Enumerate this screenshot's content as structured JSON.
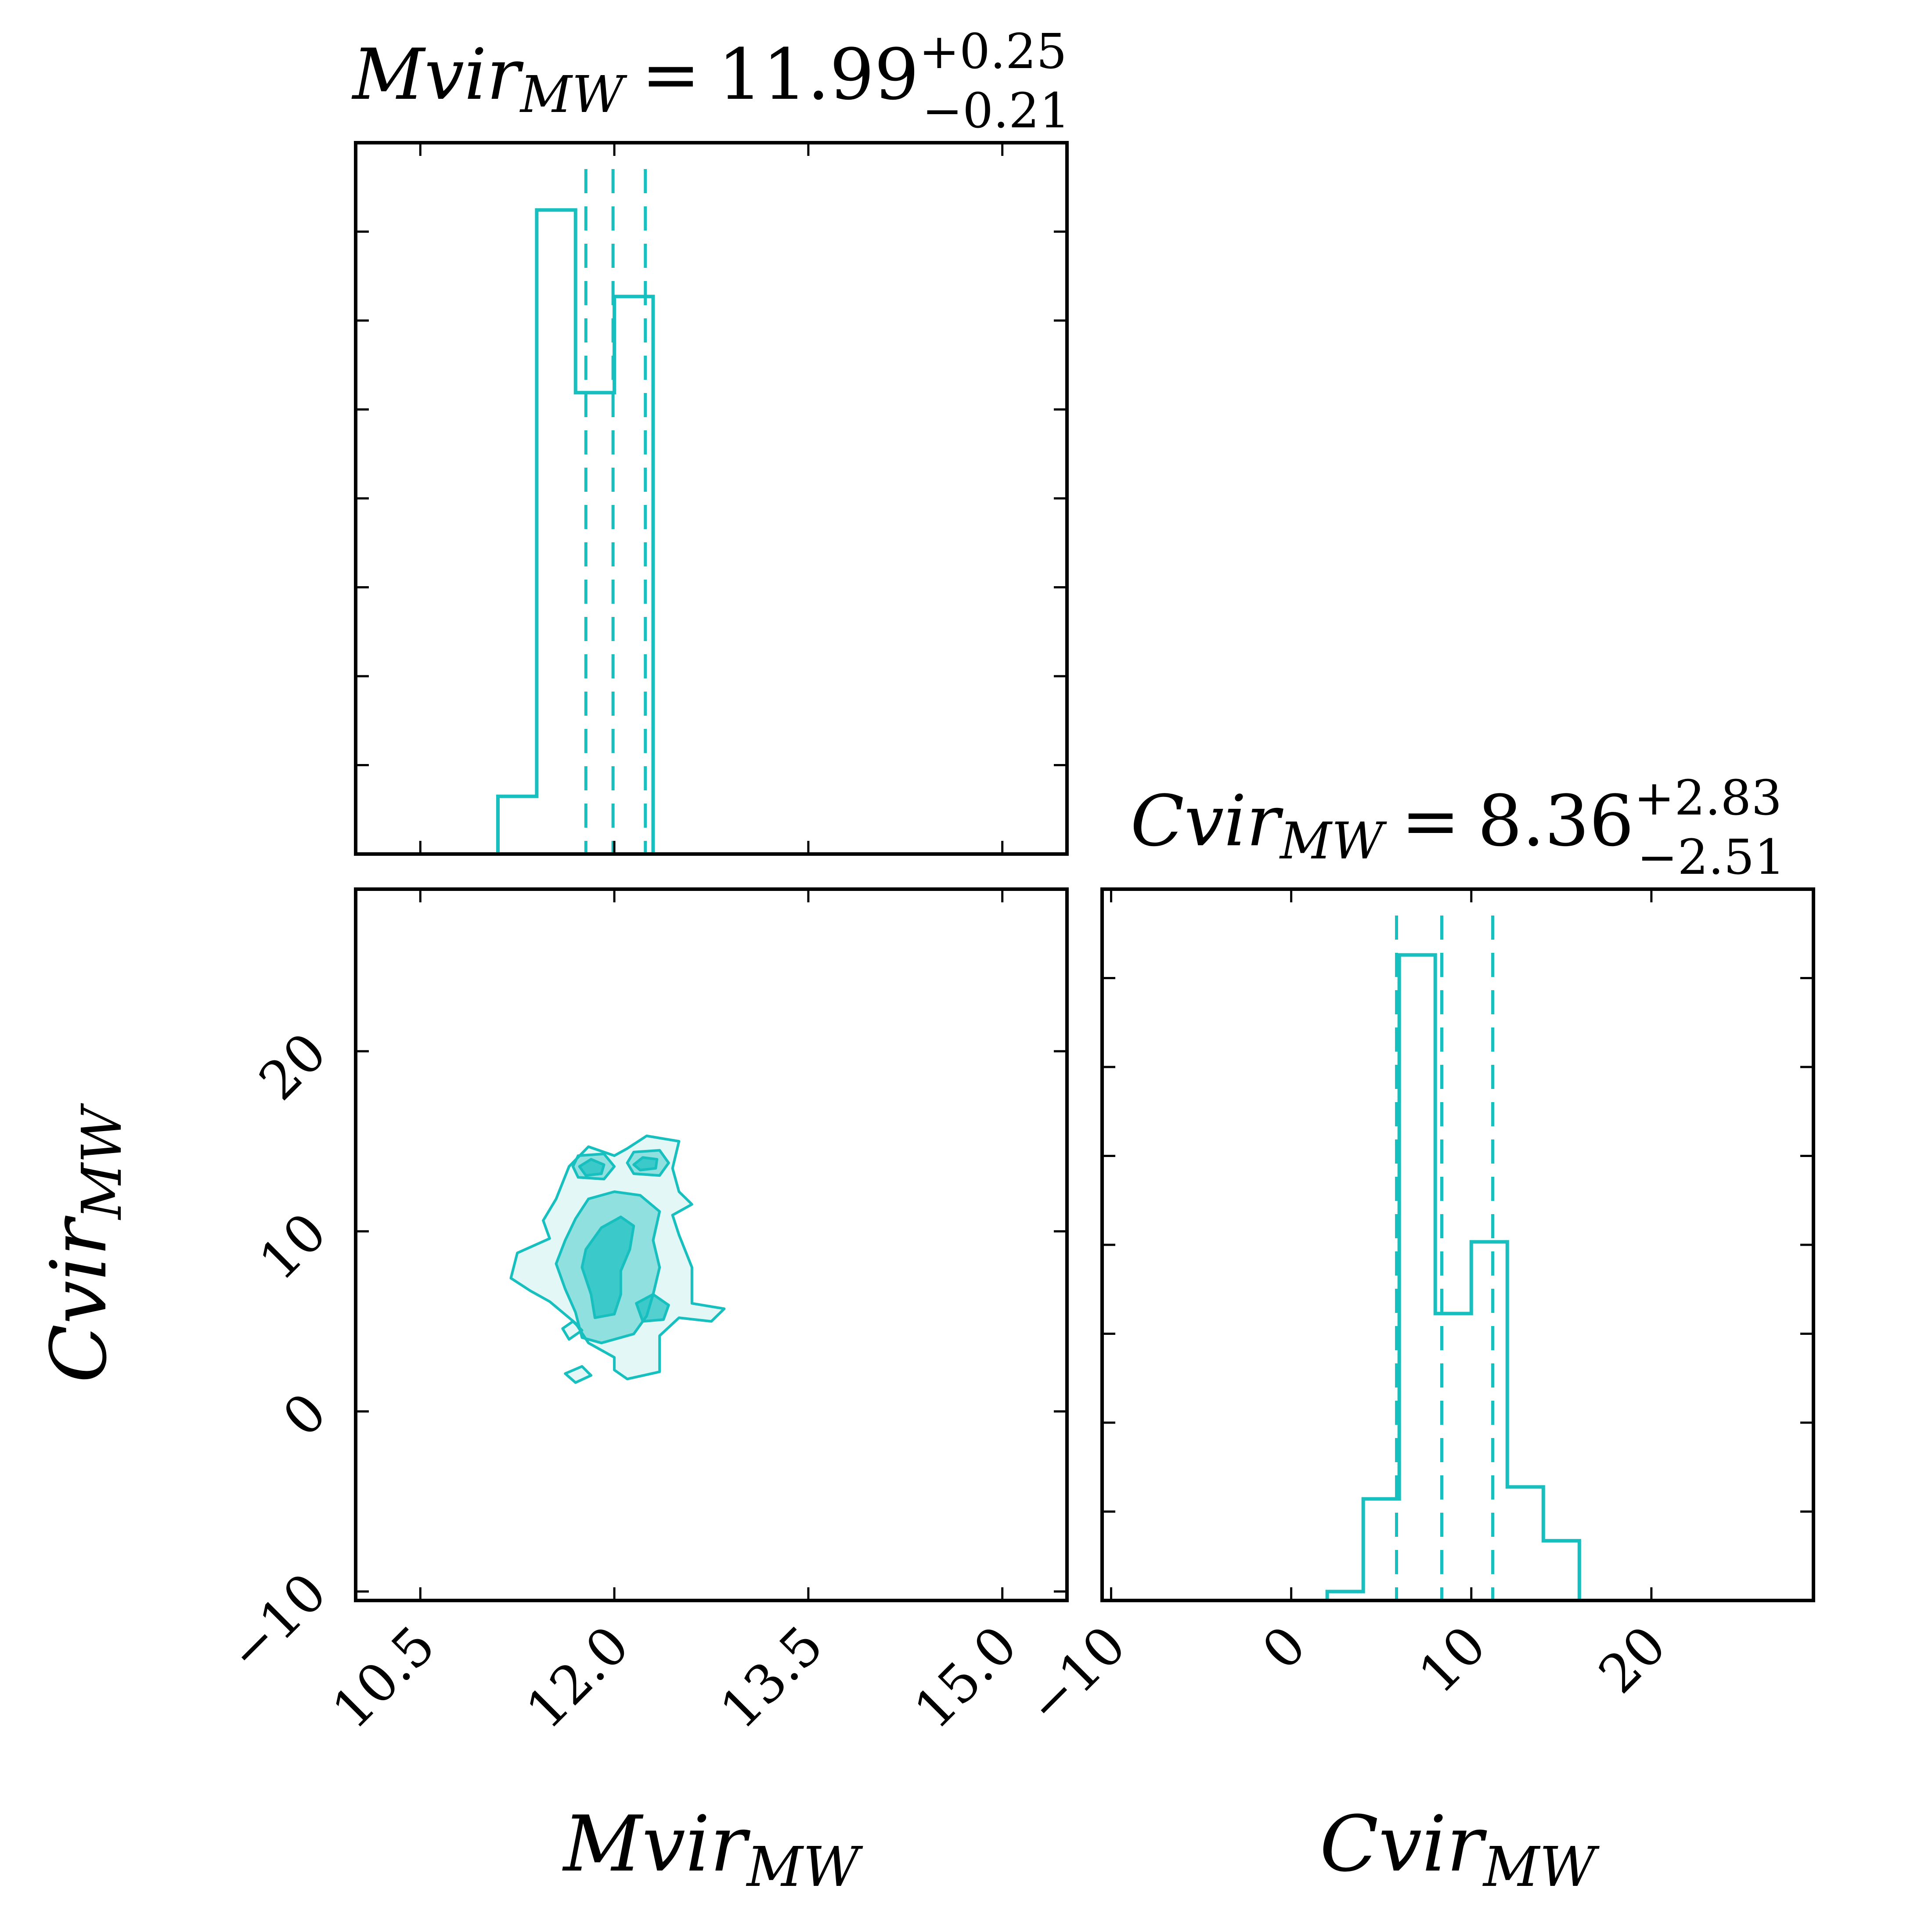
{
  "figure": {
    "type": "corner-plot",
    "accent_color": "#17bfbf"
  },
  "chart_data": [
    {
      "type": "bar",
      "panel": "hist-mvir",
      "title": {
        "param": "Mvir",
        "sub": "MW",
        "eq": "=",
        "median": "11.99",
        "plus": "+0.25",
        "minus": "−0.21"
      },
      "bin_edges": [
        10.8,
        11.1,
        11.4,
        11.7,
        12.0,
        12.3,
        12.6,
        12.9
      ],
      "values": [
        0.0,
        0.06,
        0.67,
        0.48,
        0.58,
        0.0,
        0.0
      ],
      "quantiles": [
        11.78,
        11.99,
        12.24
      ],
      "xlim": [
        10.0,
        15.5
      ],
      "ylim": [
        0,
        0.74
      ],
      "xlabel": "",
      "ylabel": ""
    },
    {
      "type": "heatmap",
      "panel": "joint-mvir-cvir",
      "xlabel": {
        "param": "Mvir",
        "sub": "MW"
      },
      "ylabel": {
        "param": "Cvir",
        "sub": "MW"
      },
      "xlim": [
        10.0,
        15.5
      ],
      "ylim": [
        -10.5,
        29
      ],
      "xticks": [
        "10.5",
        "12.0",
        "13.5",
        "15.0"
      ],
      "yticks": [
        "−10",
        "0",
        "10",
        "20"
      ],
      "xtick_values": [
        10.5,
        12.0,
        13.5,
        15.0
      ],
      "ytick_values": [
        -10,
        0,
        10,
        20
      ],
      "contour_levels": [
        {
          "level": 1,
          "polygons": [
            [
              [
                11.2,
                7.4
              ],
              [
                11.25,
                8.8
              ],
              [
                11.5,
                9.6
              ],
              [
                11.45,
                10.6
              ],
              [
                11.55,
                11.8
              ],
              [
                11.65,
                13.6
              ],
              [
                11.8,
                14.7
              ],
              [
                12.0,
                14.2
              ],
              [
                12.1,
                14.6
              ],
              [
                12.25,
                15.3
              ],
              [
                12.5,
                15.0
              ],
              [
                12.45,
                13.5
              ],
              [
                12.5,
                12.2
              ],
              [
                12.6,
                11.5
              ],
              [
                12.45,
                10.9
              ],
              [
                12.5,
                9.8
              ],
              [
                12.6,
                8.0
              ],
              [
                12.6,
                6.0
              ],
              [
                12.85,
                5.7
              ],
              [
                12.75,
                5.0
              ],
              [
                12.5,
                5.2
              ],
              [
                12.35,
                4.2
              ],
              [
                12.35,
                2.2
              ],
              [
                12.1,
                1.8
              ],
              [
                12.0,
                2.3
              ],
              [
                12.0,
                3.0
              ],
              [
                11.8,
                3.8
              ],
              [
                11.7,
                4.9
              ],
              [
                11.5,
                6.1
              ],
              [
                11.35,
                6.7
              ],
              [
                11.2,
                7.4
              ]
            ],
            [
              [
                11.65,
                4.0
              ],
              [
                11.75,
                4.5
              ],
              [
                11.68,
                5.0
              ],
              [
                11.6,
                4.6
              ],
              [
                11.65,
                4.0
              ]
            ],
            [
              [
                11.7,
                1.6
              ],
              [
                11.82,
                2.0
              ],
              [
                11.75,
                2.5
              ],
              [
                11.62,
                2.1
              ],
              [
                11.7,
                1.6
              ]
            ]
          ]
        },
        {
          "level": 2,
          "polygons": [
            [
              [
                11.55,
                8.2
              ],
              [
                11.62,
                9.5
              ],
              [
                11.7,
                10.7
              ],
              [
                11.8,
                11.8
              ],
              [
                12.0,
                12.2
              ],
              [
                12.2,
                12.0
              ],
              [
                12.35,
                11.1
              ],
              [
                12.3,
                9.5
              ],
              [
                12.35,
                8.0
              ],
              [
                12.3,
                6.5
              ],
              [
                12.25,
                5.3
              ],
              [
                12.15,
                4.3
              ],
              [
                11.9,
                3.8
              ],
              [
                11.75,
                4.1
              ],
              [
                11.7,
                5.5
              ],
              [
                11.62,
                6.8
              ],
              [
                11.55,
                8.2
              ]
            ],
            [
              [
                11.72,
                13.0
              ],
              [
                11.92,
                12.9
              ],
              [
                12.0,
                13.6
              ],
              [
                11.92,
                14.3
              ],
              [
                11.72,
                14.2
              ],
              [
                11.68,
                13.6
              ],
              [
                11.72,
                13.0
              ]
            ],
            [
              [
                12.15,
                13.2
              ],
              [
                12.35,
                13.1
              ],
              [
                12.42,
                13.8
              ],
              [
                12.35,
                14.5
              ],
              [
                12.15,
                14.4
              ],
              [
                12.1,
                13.8
              ],
              [
                12.15,
                13.2
              ]
            ]
          ]
        },
        {
          "level": 3,
          "polygons": [
            [
              [
                11.75,
                8.0
              ],
              [
                11.78,
                9.0
              ],
              [
                11.9,
                10.2
              ],
              [
                12.05,
                10.8
              ],
              [
                12.15,
                10.3
              ],
              [
                12.12,
                9.0
              ],
              [
                12.05,
                7.8
              ],
              [
                12.05,
                6.5
              ],
              [
                12.0,
                5.4
              ],
              [
                11.85,
                5.2
              ],
              [
                11.82,
                6.5
              ],
              [
                11.75,
                8.0
              ]
            ],
            [
              [
                12.22,
                5.0
              ],
              [
                12.38,
                5.1
              ],
              [
                12.42,
                5.9
              ],
              [
                12.3,
                6.5
              ],
              [
                12.17,
                6.0
              ],
              [
                12.22,
                5.0
              ]
            ],
            [
              [
                11.78,
                13.1
              ],
              [
                11.9,
                13.2
              ],
              [
                11.92,
                13.7
              ],
              [
                11.82,
                14.0
              ],
              [
                11.73,
                13.6
              ],
              [
                11.78,
                13.1
              ]
            ],
            [
              [
                12.2,
                13.4
              ],
              [
                12.32,
                13.5
              ],
              [
                12.33,
                14.0
              ],
              [
                12.22,
                14.1
              ],
              [
                12.15,
                13.7
              ],
              [
                12.2,
                13.4
              ]
            ]
          ]
        }
      ],
      "contour_fill_opacity": [
        0.12,
        0.4,
        0.7
      ]
    },
    {
      "type": "bar",
      "panel": "hist-cvir",
      "title": {
        "param": "Cvir",
        "sub": "MW",
        "eq": "=",
        "median": "8.36",
        "plus": "+2.83",
        "minus": "−2.51"
      },
      "bin_edges": [
        -10,
        -8,
        -6,
        -4,
        -2,
        0,
        2,
        4,
        6,
        8,
        10,
        12,
        14,
        16,
        18
      ],
      "values": [
        0,
        0,
        0,
        0,
        0,
        0,
        0.015,
        0.17,
        1.08,
        0.48,
        0.6,
        0.19,
        0.1,
        0
      ],
      "quantiles": [
        5.85,
        8.36,
        11.19
      ],
      "xlim": [
        -10.5,
        29
      ],
      "ylim": [
        0,
        1.19
      ],
      "xticks": [
        "−10",
        "0",
        "10",
        "20"
      ],
      "xtick_values": [
        -10,
        0,
        10,
        20
      ],
      "xlabel": {
        "param": "Cvir",
        "sub": "MW"
      },
      "ylabel": ""
    }
  ]
}
